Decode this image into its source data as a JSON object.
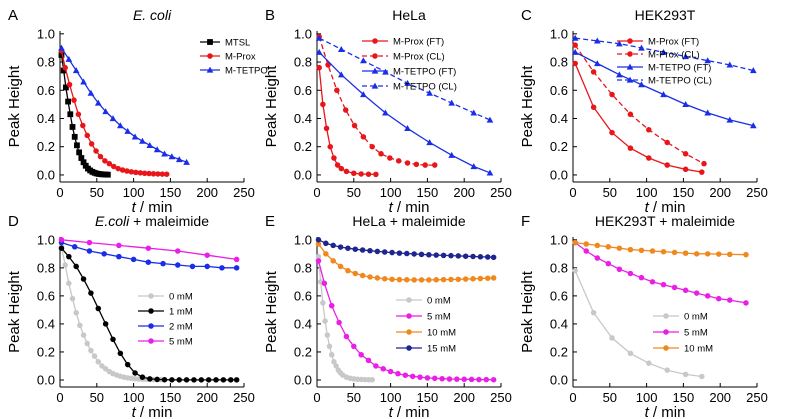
{
  "chart_data": [
    {
      "panel_id": "A",
      "type": "line",
      "title": "E. coli",
      "title_italic": true,
      "xlabel": "t / min",
      "ylabel": "Peak Height",
      "xlim": [
        0,
        250
      ],
      "ylim": [
        -0.05,
        1.02
      ],
      "xticks": [
        0,
        50,
        100,
        150,
        200,
        250
      ],
      "yticks": [
        0.0,
        0.2,
        0.4,
        0.6,
        0.8,
        1.0
      ],
      "legend_position": "top-right",
      "series": [
        {
          "name": "MTSL",
          "color": "#000000",
          "marker": "square",
          "dash": "solid",
          "x": [
            2,
            5,
            8,
            11,
            14,
            17,
            20,
            23,
            26,
            29,
            32,
            35,
            38,
            41,
            44,
            47,
            50,
            53,
            56,
            59,
            62,
            65
          ],
          "y": [
            0.85,
            0.74,
            0.62,
            0.52,
            0.43,
            0.34,
            0.27,
            0.21,
            0.16,
            0.12,
            0.09,
            0.065,
            0.045,
            0.032,
            0.022,
            0.015,
            0.01,
            0.007,
            0.005,
            0.004,
            0.003,
            0.002
          ]
        },
        {
          "name": "M-Prox",
          "color": "#e8161b",
          "marker": "circle",
          "dash": "solid",
          "x": [
            2,
            7,
            13,
            19,
            25,
            31,
            37,
            43,
            49,
            55,
            61,
            67,
            73,
            79,
            85,
            91,
            97,
            103,
            109,
            115,
            121,
            127,
            133,
            139,
            145
          ],
          "y": [
            0.88,
            0.76,
            0.64,
            0.53,
            0.43,
            0.35,
            0.28,
            0.22,
            0.17,
            0.13,
            0.1,
            0.08,
            0.06,
            0.045,
            0.035,
            0.028,
            0.022,
            0.018,
            0.015,
            0.012,
            0.01,
            0.008,
            0.007,
            0.006,
            0.005
          ]
        },
        {
          "name": "M-TETPO",
          "color": "#1a2ee8",
          "marker": "triangle",
          "dash": "solid",
          "x": [
            2,
            12,
            22,
            32,
            42,
            52,
            62,
            72,
            82,
            92,
            102,
            112,
            122,
            132,
            142,
            152,
            162,
            172
          ],
          "y": [
            0.9,
            0.82,
            0.74,
            0.66,
            0.58,
            0.51,
            0.45,
            0.4,
            0.35,
            0.31,
            0.27,
            0.24,
            0.21,
            0.18,
            0.15,
            0.13,
            0.11,
            0.09
          ]
        }
      ]
    },
    {
      "panel_id": "B",
      "type": "line",
      "title": "HeLa",
      "title_italic": false,
      "xlabel": "t / min",
      "ylabel": "Peak Height",
      "xlim": [
        0,
        250
      ],
      "ylim": [
        -0.05,
        1.02
      ],
      "xticks": [
        0,
        50,
        100,
        150,
        200,
        250
      ],
      "yticks": [
        0.0,
        0.2,
        0.4,
        0.6,
        0.8,
        1.0
      ],
      "legend_position": "top-right",
      "series": [
        {
          "name": "M-Prox (FT)",
          "color": "#e8161b",
          "marker": "circle",
          "dash": "solid",
          "x": [
            3,
            8,
            13,
            18,
            23,
            28,
            33,
            40,
            50,
            60,
            70,
            80
          ],
          "y": [
            0.76,
            0.5,
            0.33,
            0.2,
            0.12,
            0.07,
            0.045,
            0.025,
            0.012,
            0.007,
            0.005,
            0.004
          ]
        },
        {
          "name": "M-Prox (CL)",
          "color": "#e8161b",
          "marker": "circle",
          "dash": "dash",
          "x": [
            3,
            15,
            27,
            39,
            51,
            63,
            75,
            87,
            99,
            111,
            123,
            135,
            147,
            160
          ],
          "y": [
            0.98,
            0.78,
            0.6,
            0.46,
            0.35,
            0.27,
            0.2,
            0.15,
            0.12,
            0.1,
            0.085,
            0.075,
            0.07,
            0.07
          ]
        },
        {
          "name": "M-TETPO (FT)",
          "color": "#1a2ee8",
          "marker": "triangle",
          "dash": "solid",
          "x": [
            3,
            33,
            63,
            93,
            123,
            153,
            183,
            213,
            235
          ],
          "y": [
            0.87,
            0.71,
            0.57,
            0.44,
            0.33,
            0.23,
            0.14,
            0.06,
            0.015
          ]
        },
        {
          "name": "M-TETPO (CL)",
          "color": "#1a2ee8",
          "marker": "triangle",
          "dash": "dash",
          "x": [
            3,
            33,
            63,
            93,
            123,
            153,
            183,
            213,
            235
          ],
          "y": [
            0.97,
            0.89,
            0.81,
            0.73,
            0.65,
            0.58,
            0.51,
            0.44,
            0.39
          ]
        }
      ]
    },
    {
      "panel_id": "C",
      "type": "line",
      "title": "HEK293T",
      "title_italic": false,
      "xlabel": "t / min",
      "ylabel": "Peak Height",
      "xlim": [
        0,
        250
      ],
      "ylim": [
        -0.05,
        1.02
      ],
      "xticks": [
        0,
        50,
        100,
        150,
        200,
        250
      ],
      "yticks": [
        0.0,
        0.2,
        0.4,
        0.6,
        0.8,
        1.0
      ],
      "legend_position": "top-right",
      "series": [
        {
          "name": "M-Prox (FT)",
          "color": "#e8161b",
          "marker": "circle",
          "dash": "solid",
          "x": [
            3,
            28,
            53,
            78,
            103,
            128,
            153,
            175
          ],
          "y": [
            0.79,
            0.48,
            0.3,
            0.19,
            0.12,
            0.07,
            0.04,
            0.02
          ]
        },
        {
          "name": "M-Prox (CL)",
          "color": "#e8161b",
          "marker": "circle",
          "dash": "dash",
          "x": [
            3,
            28,
            53,
            78,
            103,
            128,
            153,
            178
          ],
          "y": [
            0.92,
            0.73,
            0.57,
            0.43,
            0.32,
            0.23,
            0.15,
            0.08
          ]
        },
        {
          "name": "M-TETPO (FT)",
          "color": "#1a2ee8",
          "marker": "triangle",
          "dash": "solid",
          "x": [
            3,
            33,
            63,
            93,
            123,
            153,
            183,
            213,
            245
          ],
          "y": [
            0.87,
            0.79,
            0.71,
            0.64,
            0.57,
            0.5,
            0.44,
            0.39,
            0.35
          ]
        },
        {
          "name": "M-TETPO (CL)",
          "color": "#1a2ee8",
          "marker": "triangle",
          "dash": "dash",
          "x": [
            3,
            33,
            63,
            93,
            123,
            153,
            183,
            213,
            245
          ],
          "y": [
            0.97,
            0.95,
            0.93,
            0.9,
            0.87,
            0.84,
            0.81,
            0.78,
            0.74
          ]
        }
      ]
    },
    {
      "panel_id": "D",
      "type": "line",
      "title": "E.coli + maleimide",
      "title_italic_part": "E.coli",
      "title_rest": " + maleimide",
      "xlabel": "t / min",
      "ylabel": "Peak Height",
      "xlim": [
        0,
        250
      ],
      "ylim": [
        -0.05,
        1.02
      ],
      "xticks": [
        0,
        50,
        100,
        150,
        200,
        250
      ],
      "yticks": [
        0.0,
        0.2,
        0.4,
        0.6,
        0.8,
        1.0
      ],
      "legend_position": "lower-right",
      "series": [
        {
          "name": "0 mM",
          "color": "#c8c8c8",
          "marker": "circle",
          "dash": "solid",
          "x": [
            2,
            7,
            12,
            17,
            22,
            27,
            32,
            37,
            42,
            47,
            52,
            57,
            62,
            67,
            72,
            77,
            82,
            87,
            92,
            97,
            102,
            107,
            112,
            117,
            122,
            127,
            132,
            137,
            142
          ],
          "y": [
            0.95,
            0.82,
            0.69,
            0.58,
            0.48,
            0.39,
            0.32,
            0.26,
            0.21,
            0.17,
            0.13,
            0.1,
            0.08,
            0.06,
            0.045,
            0.035,
            0.027,
            0.02,
            0.015,
            0.012,
            0.009,
            0.007,
            0.006,
            0.005,
            0.004,
            0.003,
            0.003,
            0.002,
            0.002
          ]
        },
        {
          "name": "1 mM",
          "color": "#000000",
          "marker": "circle",
          "dash": "solid",
          "x": [
            2,
            12,
            22,
            32,
            42,
            52,
            62,
            72,
            82,
            92,
            102,
            112,
            122,
            132,
            142,
            152,
            162,
            172,
            182,
            192,
            202,
            212,
            222,
            232,
            240
          ],
          "y": [
            0.94,
            0.88,
            0.81,
            0.72,
            0.62,
            0.51,
            0.4,
            0.29,
            0.19,
            0.11,
            0.05,
            0.02,
            0.008,
            0.004,
            0.002,
            0.001,
            0.001,
            0.001,
            0.001,
            0.001,
            0.001,
            0.001,
            0.001,
            0.001,
            0.001
          ]
        },
        {
          "name": "2 mM",
          "color": "#1a2ee8",
          "marker": "circle",
          "dash": "solid",
          "x": [
            2,
            20,
            40,
            60,
            80,
            100,
            120,
            140,
            160,
            180,
            200,
            220,
            240
          ],
          "y": [
            0.98,
            0.95,
            0.92,
            0.9,
            0.88,
            0.86,
            0.84,
            0.83,
            0.82,
            0.81,
            0.81,
            0.8,
            0.8
          ]
        },
        {
          "name": "5 mM",
          "color": "#ea1fe6",
          "marker": "circle",
          "dash": "solid",
          "x": [
            2,
            40,
            80,
            120,
            160,
            200,
            240
          ],
          "y": [
            1.0,
            0.98,
            0.96,
            0.94,
            0.92,
            0.89,
            0.86
          ]
        }
      ]
    },
    {
      "panel_id": "E",
      "type": "line",
      "title": "HeLa + maleimide",
      "xlabel": "t / min",
      "ylabel": "Peak Height",
      "xlim": [
        0,
        250
      ],
      "ylim": [
        -0.05,
        1.02
      ],
      "xticks": [
        0,
        50,
        100,
        150,
        200,
        250
      ],
      "yticks": [
        0.0,
        0.2,
        0.4,
        0.6,
        0.8,
        1.0
      ],
      "legend_position": "lower-right",
      "series": [
        {
          "name": "0 mM",
          "color": "#c8c8c8",
          "marker": "circle",
          "dash": "solid",
          "x": [
            2,
            5,
            8,
            11,
            14,
            17,
            20,
            23,
            26,
            29,
            32,
            35,
            40,
            45,
            50,
            55,
            60,
            65,
            70,
            75
          ],
          "y": [
            0.88,
            0.7,
            0.55,
            0.42,
            0.32,
            0.24,
            0.18,
            0.13,
            0.1,
            0.07,
            0.05,
            0.035,
            0.02,
            0.012,
            0.008,
            0.005,
            0.004,
            0.003,
            0.002,
            0.002
          ]
        },
        {
          "name": "5 mM",
          "color": "#ea1fe6",
          "marker": "circle",
          "dash": "solid",
          "x": [
            2,
            10,
            20,
            30,
            40,
            50,
            60,
            70,
            80,
            90,
            100,
            110,
            120,
            130,
            140,
            150,
            160,
            170,
            180,
            190,
            200,
            210,
            220,
            230,
            240
          ],
          "y": [
            0.85,
            0.69,
            0.53,
            0.41,
            0.31,
            0.24,
            0.18,
            0.14,
            0.1,
            0.08,
            0.06,
            0.045,
            0.034,
            0.026,
            0.02,
            0.015,
            0.012,
            0.009,
            0.007,
            0.006,
            0.005,
            0.004,
            0.003,
            0.003,
            0.002
          ]
        },
        {
          "name": "10 mM",
          "color": "#f0891d",
          "marker": "circle",
          "dash": "solid",
          "x": [
            2,
            12,
            22,
            32,
            42,
            52,
            62,
            72,
            82,
            92,
            102,
            112,
            122,
            132,
            142,
            152,
            162,
            172,
            182,
            192,
            202,
            212,
            222,
            232,
            240
          ],
          "y": [
            0.97,
            0.9,
            0.85,
            0.81,
            0.78,
            0.76,
            0.745,
            0.735,
            0.728,
            0.722,
            0.718,
            0.716,
            0.715,
            0.714,
            0.714,
            0.714,
            0.715,
            0.716,
            0.717,
            0.718,
            0.72,
            0.722,
            0.724,
            0.726,
            0.728
          ]
        },
        {
          "name": "15 mM",
          "color": "#1e2490",
          "marker": "circle",
          "dash": "solid",
          "x": [
            2,
            12,
            22,
            32,
            42,
            52,
            62,
            72,
            82,
            92,
            102,
            112,
            122,
            132,
            142,
            152,
            162,
            172,
            182,
            192,
            202,
            212,
            222,
            232,
            240
          ],
          "y": [
            1.0,
            0.975,
            0.96,
            0.948,
            0.94,
            0.933,
            0.927,
            0.922,
            0.917,
            0.913,
            0.909,
            0.905,
            0.902,
            0.899,
            0.896,
            0.893,
            0.891,
            0.889,
            0.887,
            0.885,
            0.883,
            0.881,
            0.879,
            0.877,
            0.875
          ]
        }
      ]
    },
    {
      "panel_id": "F",
      "type": "line",
      "title": "HEK293T + maleimide",
      "xlabel": "t / min",
      "ylabel": "Peak Height",
      "xlim": [
        0,
        250
      ],
      "ylim": [
        -0.05,
        1.02
      ],
      "xticks": [
        0,
        50,
        100,
        150,
        200,
        250
      ],
      "yticks": [
        0.0,
        0.2,
        0.4,
        0.6,
        0.8,
        1.0
      ],
      "legend_position": "lower-right",
      "series": [
        {
          "name": "0 mM",
          "color": "#c8c8c8",
          "marker": "circle",
          "dash": "solid",
          "x": [
            3,
            28,
            53,
            78,
            103,
            128,
            153,
            175
          ],
          "y": [
            0.78,
            0.48,
            0.3,
            0.19,
            0.12,
            0.07,
            0.04,
            0.025
          ]
        },
        {
          "name": "5 mM",
          "color": "#ea1fe6",
          "marker": "circle",
          "dash": "solid",
          "x": [
            3,
            18,
            33,
            48,
            63,
            78,
            93,
            108,
            123,
            138,
            153,
            168,
            183,
            198,
            213,
            235
          ],
          "y": [
            0.98,
            0.92,
            0.87,
            0.83,
            0.79,
            0.76,
            0.73,
            0.7,
            0.68,
            0.66,
            0.64,
            0.62,
            0.6,
            0.58,
            0.57,
            0.55
          ]
        },
        {
          "name": "10 mM",
          "color": "#f0891d",
          "marker": "circle",
          "dash": "solid",
          "x": [
            3,
            18,
            33,
            48,
            63,
            78,
            93,
            108,
            123,
            138,
            153,
            168,
            183,
            198,
            213,
            235
          ],
          "y": [
            0.98,
            0.97,
            0.96,
            0.95,
            0.94,
            0.93,
            0.925,
            0.92,
            0.915,
            0.91,
            0.905,
            0.9,
            0.9,
            0.898,
            0.896,
            0.894
          ]
        }
      ]
    }
  ]
}
